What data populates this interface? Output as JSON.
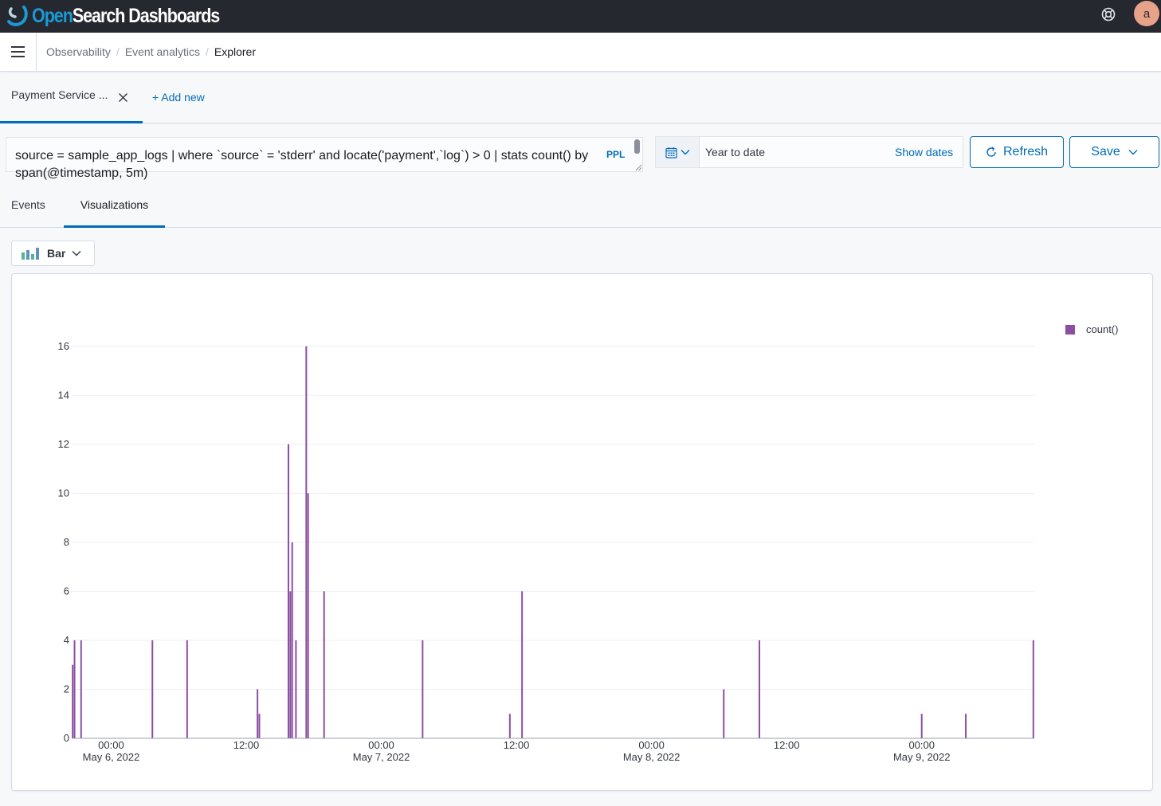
{
  "header": {
    "logo_open": "Open",
    "logo_rest": "Search Dashboards",
    "avatar_initial": "a",
    "help_icon": "lifebuoy-icon",
    "bg_color": "#25282f"
  },
  "breadcrumbs": {
    "items": [
      "Observability",
      "Event analytics"
    ],
    "current": "Explorer"
  },
  "query_tabs": {
    "active_label": "Payment Service ...",
    "add_new_label": "+ Add new"
  },
  "query": {
    "text": "source = sample_app_logs | where `source` = 'stderr' and locate('payment',`log`) > 0 | stats count() by span(@timestamp, 5m)",
    "language_badge": "PPL"
  },
  "date_picker": {
    "value": "Year to date",
    "show_dates_label": "Show dates"
  },
  "actions": {
    "refresh_label": "Refresh",
    "save_label": "Save"
  },
  "view_tabs": {
    "events_label": "Events",
    "visualizations_label": "Visualizations",
    "active": "Visualizations"
  },
  "chart_type_selector": {
    "selected": "Bar"
  },
  "accent_color": "#006bb8",
  "chart_data": {
    "type": "bar",
    "series": [
      {
        "name": "count()",
        "color": "#8c4ea3",
        "points": [
          [
            "2022-05-05T20:35",
            3
          ],
          [
            "2022-05-05T20:45",
            4
          ],
          [
            "2022-05-05T21:20",
            4
          ],
          [
            "2022-05-06T03:40",
            4
          ],
          [
            "2022-05-06T06:45",
            4
          ],
          [
            "2022-05-06T13:00",
            2
          ],
          [
            "2022-05-06T13:10",
            1
          ],
          [
            "2022-05-06T15:45",
            12
          ],
          [
            "2022-05-06T15:55",
            6
          ],
          [
            "2022-05-06T16:05",
            8
          ],
          [
            "2022-05-06T16:25",
            4
          ],
          [
            "2022-05-06T17:20",
            16
          ],
          [
            "2022-05-06T17:30",
            10
          ],
          [
            "2022-05-06T18:55",
            6
          ],
          [
            "2022-05-07T03:40",
            4
          ],
          [
            "2022-05-07T11:25",
            1
          ],
          [
            "2022-05-07T12:30",
            6
          ],
          [
            "2022-05-08T06:25",
            2
          ],
          [
            "2022-05-08T09:35",
            4
          ],
          [
            "2022-05-09T00:00",
            1
          ],
          [
            "2022-05-09T03:55",
            1
          ],
          [
            "2022-05-09T09:55",
            4
          ]
        ]
      }
    ],
    "y_ticks": [
      0,
      2,
      4,
      6,
      8,
      10,
      12,
      14,
      16
    ],
    "ylim": [
      0,
      17
    ],
    "x_range": [
      "2022-05-05T20:30",
      "2022-05-09T10:00"
    ],
    "x_ticks": [
      {
        "t": "2022-05-06T00:00",
        "time": "00:00",
        "date": "May 6, 2022"
      },
      {
        "t": "2022-05-06T12:00",
        "time": "12:00",
        "date": ""
      },
      {
        "t": "2022-05-07T00:00",
        "time": "00:00",
        "date": "May 7, 2022"
      },
      {
        "t": "2022-05-07T12:00",
        "time": "12:00",
        "date": ""
      },
      {
        "t": "2022-05-08T00:00",
        "time": "00:00",
        "date": "May 8, 2022"
      },
      {
        "t": "2022-05-08T12:00",
        "time": "12:00",
        "date": ""
      },
      {
        "t": "2022-05-09T00:00",
        "time": "00:00",
        "date": "May 9, 2022"
      }
    ],
    "grid": true,
    "legend": "top-right"
  }
}
